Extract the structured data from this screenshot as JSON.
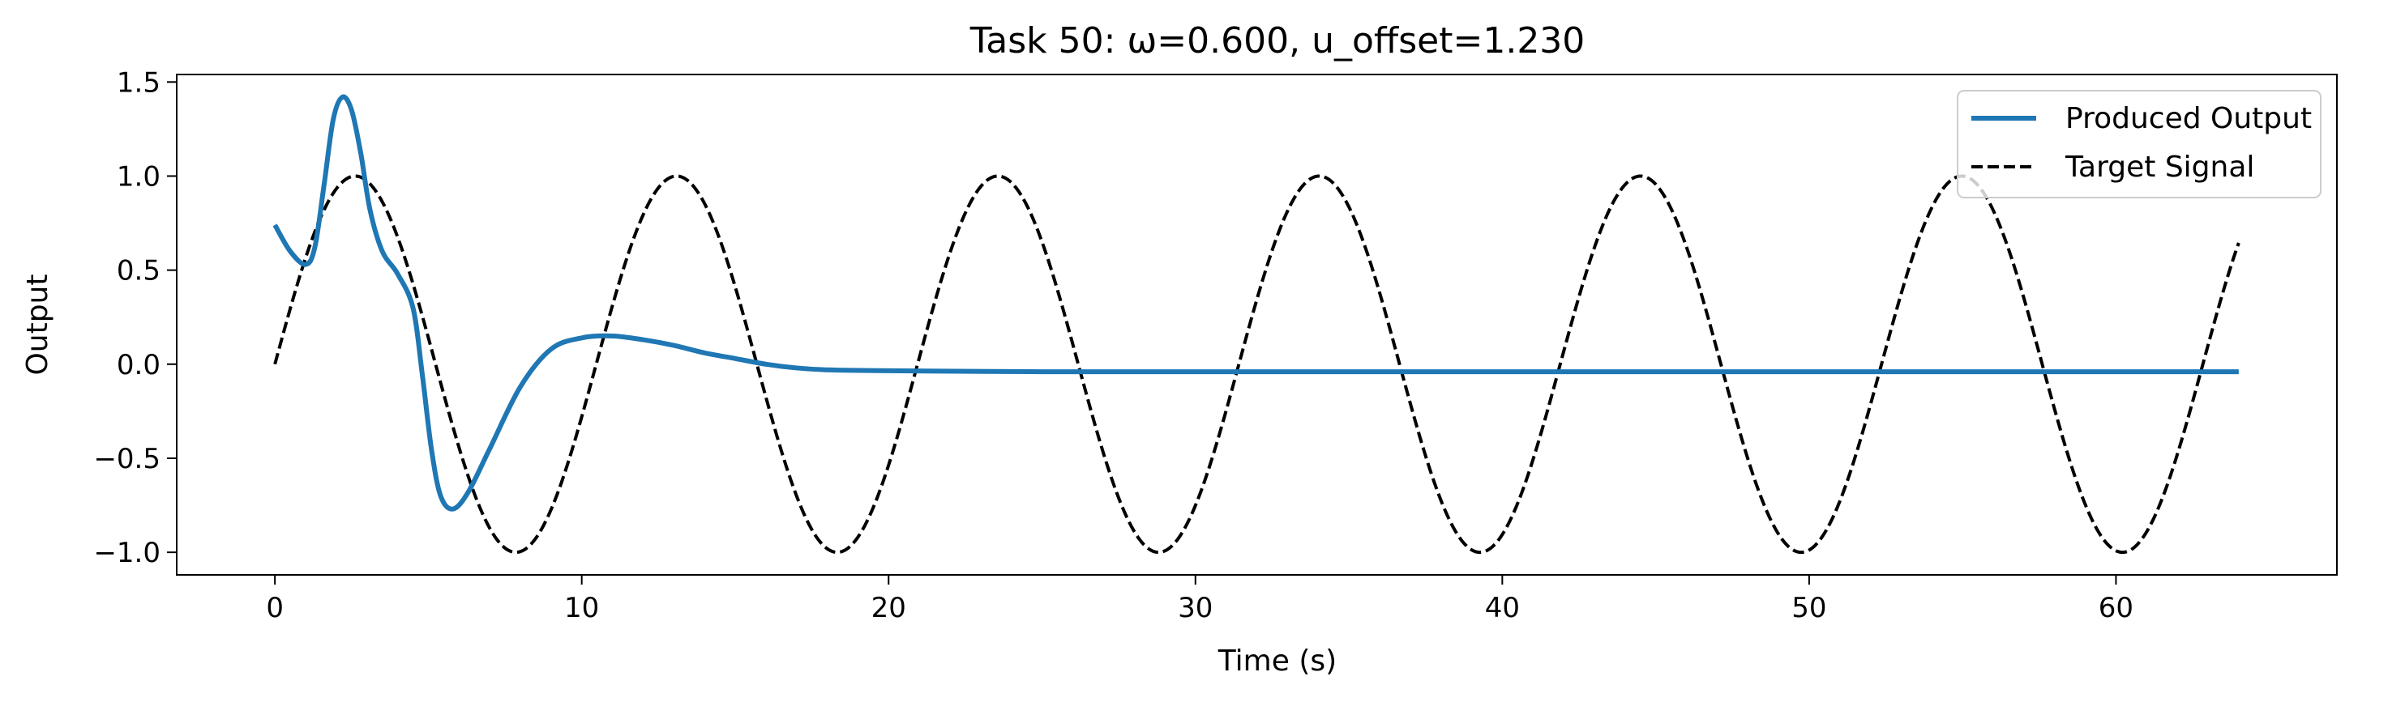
{
  "chart_data": {
    "type": "line",
    "title": "Task 50: ω=0.600, u_offset=1.230",
    "xlabel": "Time (s)",
    "ylabel": "Output",
    "xlim": [
      -3.2,
      67.2
    ],
    "ylim": [
      -1.12,
      1.54
    ],
    "xticks": [
      0,
      10,
      20,
      30,
      40,
      50,
      60
    ],
    "yticks": [
      1.5,
      1.0,
      0.5,
      0.0,
      -0.5,
      -1.0
    ],
    "xtick_labels": [
      "0",
      "10",
      "20",
      "30",
      "40",
      "50",
      "60"
    ],
    "ytick_labels": [
      "1.5",
      "1.0",
      "0.5",
      "0.0",
      "−0.5",
      "−1.0"
    ],
    "grid": false,
    "legend_position": "top-right",
    "colors": {
      "produced": "#1f77b4",
      "target": "#000000"
    },
    "series": [
      {
        "name": "Produced Output",
        "style": "solid",
        "x": [
          0,
          0.5,
          1.0,
          1.3,
          1.6,
          1.9,
          2.2,
          2.5,
          2.8,
          3.1,
          3.5,
          4.0,
          4.5,
          4.8,
          5.1,
          5.4,
          5.8,
          6.3,
          7.0,
          8.0,
          9.0,
          10.0,
          11.0,
          12.0,
          13.0,
          14.0,
          15.0,
          16.0,
          17.0,
          18.0,
          20.0,
          25.0,
          30.0,
          40.0,
          50.0,
          60.0,
          64.0
        ],
        "y": [
          0.74,
          0.6,
          0.53,
          0.62,
          0.95,
          1.3,
          1.42,
          1.35,
          1.12,
          0.82,
          0.6,
          0.48,
          0.3,
          -0.05,
          -0.45,
          -0.7,
          -0.77,
          -0.68,
          -0.45,
          -0.12,
          0.08,
          0.14,
          0.15,
          0.13,
          0.1,
          0.06,
          0.03,
          0.0,
          -0.02,
          -0.03,
          -0.035,
          -0.04,
          -0.04,
          -0.04,
          -0.04,
          -0.04,
          -0.04
        ]
      },
      {
        "name": "Target Signal",
        "style": "dashed",
        "function": "sin",
        "amplitude": 1.0,
        "omega": 0.6,
        "x_range": [
          0,
          64
        ]
      }
    ]
  }
}
